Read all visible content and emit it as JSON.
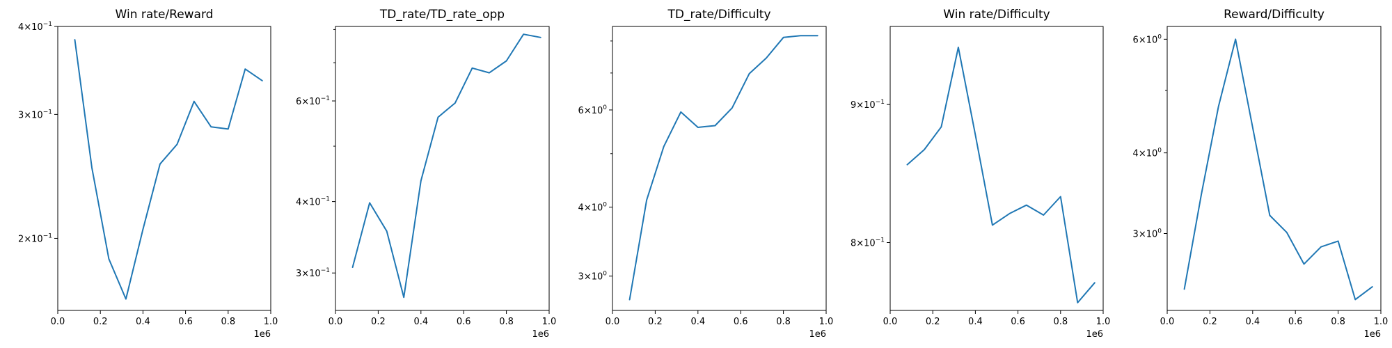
{
  "chart_data": [
    {
      "type": "line",
      "title": "Win rate/Reward",
      "xlabel": "",
      "ylabel": "",
      "x_offset_label": "1e6",
      "x": [
        80000,
        160000,
        240000,
        320000,
        400000,
        480000,
        560000,
        640000,
        720000,
        800000,
        880000,
        960000
      ],
      "values": [
        0.383,
        0.252,
        0.187,
        0.164,
        0.206,
        0.255,
        0.272,
        0.313,
        0.288,
        0.286,
        0.348,
        0.335
      ],
      "xlim": [
        0,
        1000000
      ],
      "ylim": [
        0.158,
        0.4
      ],
      "yscale": "log",
      "xticks": [
        {
          "value": 0.0,
          "label": "0.0"
        },
        {
          "value": 200000,
          "label": "0.2"
        },
        {
          "value": 400000,
          "label": "0.4"
        },
        {
          "value": 600000,
          "label": "0.6"
        },
        {
          "value": 800000,
          "label": "0.8"
        },
        {
          "value": 1000000,
          "label": "1.0"
        }
      ],
      "yticks_major": [
        {
          "value": 0.2,
          "mant": "2",
          "exp": "−1"
        },
        {
          "value": 0.3,
          "mant": "3",
          "exp": "−1"
        },
        {
          "value": 0.4,
          "mant": "4",
          "exp": "−1"
        }
      ],
      "yticks_minor": []
    },
    {
      "type": "line",
      "title": "TD_rate/TD_rate_opp",
      "xlabel": "",
      "ylabel": "",
      "x_offset_label": "1e6",
      "x": [
        80000,
        160000,
        240000,
        320000,
        400000,
        480000,
        560000,
        640000,
        720000,
        800000,
        880000,
        960000
      ],
      "values": [
        0.307,
        0.398,
        0.355,
        0.272,
        0.435,
        0.562,
        0.595,
        0.685,
        0.672,
        0.705,
        0.785,
        0.775
      ],
      "xlim": [
        0,
        1000000
      ],
      "ylim": [
        0.258,
        0.81
      ],
      "yscale": "log",
      "xticks": [
        {
          "value": 0.0,
          "label": "0.0"
        },
        {
          "value": 200000,
          "label": "0.2"
        },
        {
          "value": 400000,
          "label": "0.4"
        },
        {
          "value": 600000,
          "label": "0.6"
        },
        {
          "value": 800000,
          "label": "0.8"
        },
        {
          "value": 1000000,
          "label": "1.0"
        }
      ],
      "yticks_major": [
        {
          "value": 0.3,
          "mant": "3",
          "exp": "−1"
        },
        {
          "value": 0.4,
          "mant": "4",
          "exp": "−1"
        },
        {
          "value": 0.6,
          "mant": "6",
          "exp": "−1"
        }
      ],
      "yticks_minor": [
        0.5,
        0.7,
        0.8
      ]
    },
    {
      "type": "line",
      "title": "TD_rate/Difficulty",
      "xlabel": "",
      "ylabel": "",
      "x_offset_label": "1e6",
      "x": [
        80000,
        160000,
        240000,
        320000,
        400000,
        480000,
        560000,
        640000,
        720000,
        800000,
        880000,
        960000
      ],
      "values": [
        2.72,
        4.12,
        5.15,
        5.95,
        5.58,
        5.62,
        6.05,
        6.98,
        7.45,
        8.12,
        8.18,
        8.18
      ],
      "xlim": [
        0,
        1000000
      ],
      "ylim": [
        2.6,
        8.5
      ],
      "yscale": "log",
      "xticks": [
        {
          "value": 0.0,
          "label": "0.0"
        },
        {
          "value": 200000,
          "label": "0.2"
        },
        {
          "value": 400000,
          "label": "0.4"
        },
        {
          "value": 600000,
          "label": "0.6"
        },
        {
          "value": 800000,
          "label": "0.8"
        },
        {
          "value": 1000000,
          "label": "1.0"
        }
      ],
      "yticks_major": [
        {
          "value": 3,
          "mant": "3",
          "exp": "0"
        },
        {
          "value": 4,
          "mant": "4",
          "exp": "0"
        },
        {
          "value": 6,
          "mant": "6",
          "exp": "0"
        }
      ],
      "yticks_minor": [
        5,
        7,
        8
      ]
    },
    {
      "type": "line",
      "title": "Win rate/Difficulty",
      "xlabel": "",
      "ylabel": "",
      "x_offset_label": "1e6",
      "x": [
        80000,
        160000,
        240000,
        320000,
        400000,
        480000,
        560000,
        640000,
        720000,
        800000,
        880000,
        960000
      ],
      "values": [
        0.855,
        0.866,
        0.883,
        0.945,
        0.877,
        0.812,
        0.82,
        0.826,
        0.819,
        0.832,
        0.76,
        0.773
      ],
      "xlim": [
        0,
        1000000
      ],
      "ylim": [
        0.755,
        0.962
      ],
      "yscale": "log",
      "xticks": [
        {
          "value": 0.0,
          "label": "0.0"
        },
        {
          "value": 200000,
          "label": "0.2"
        },
        {
          "value": 400000,
          "label": "0.4"
        },
        {
          "value": 600000,
          "label": "0.6"
        },
        {
          "value": 800000,
          "label": "0.8"
        },
        {
          "value": 1000000,
          "label": "1.0"
        }
      ],
      "yticks_major": [
        {
          "value": 0.8,
          "mant": "8",
          "exp": "−1"
        },
        {
          "value": 0.9,
          "mant": "9",
          "exp": "−1"
        }
      ],
      "yticks_minor": []
    },
    {
      "type": "line",
      "title": "Reward/Difficulty",
      "xlabel": "",
      "ylabel": "",
      "x_offset_label": "1e6",
      "x": [
        80000,
        160000,
        240000,
        320000,
        400000,
        480000,
        560000,
        640000,
        720000,
        800000,
        880000,
        960000
      ],
      "values": [
        2.46,
        3.45,
        4.72,
        6.0,
        4.38,
        3.2,
        3.01,
        2.69,
        2.86,
        2.92,
        2.37,
        2.48
      ],
      "xlim": [
        0,
        1000000
      ],
      "ylim": [
        2.28,
        6.28
      ],
      "yscale": "log",
      "xticks": [
        {
          "value": 0.0,
          "label": "0.0"
        },
        {
          "value": 200000,
          "label": "0.2"
        },
        {
          "value": 400000,
          "label": "0.4"
        },
        {
          "value": 600000,
          "label": "0.6"
        },
        {
          "value": 800000,
          "label": "0.8"
        },
        {
          "value": 1000000,
          "label": "1.0"
        }
      ],
      "yticks_major": [
        {
          "value": 3,
          "mant": "3",
          "exp": "0"
        },
        {
          "value": 4,
          "mant": "4",
          "exp": "0"
        },
        {
          "value": 6,
          "mant": "6",
          "exp": "0"
        }
      ],
      "yticks_minor": [
        5
      ]
    }
  ],
  "colors": {
    "line": "#1f77b4",
    "axis": "#000000",
    "background": "#ffffff"
  }
}
